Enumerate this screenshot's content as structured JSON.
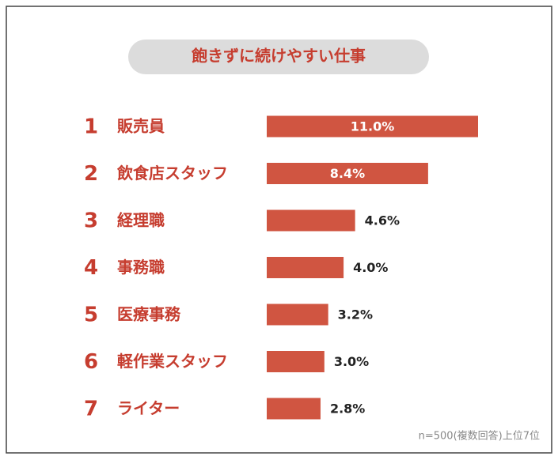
{
  "chart_data": {
    "type": "bar",
    "orientation": "horizontal",
    "title": "飽きずに続けやすい仕事",
    "ranks": [
      1,
      2,
      3,
      4,
      5,
      6,
      7
    ],
    "categories": [
      "販売員",
      "飲食店スタッフ",
      "経理職",
      "事務職",
      "医療事務",
      "軽作業スタッフ",
      "ライター"
    ],
    "values": [
      11.0,
      8.4,
      4.6,
      4.0,
      3.2,
      3.0,
      2.8
    ],
    "value_labels": [
      "11.0%",
      "8.4%",
      "4.6%",
      "4.0%",
      "3.2%",
      "3.0%",
      "2.8%"
    ],
    "color": "#d05541",
    "note": "n=500(複数回答)上位7位"
  }
}
